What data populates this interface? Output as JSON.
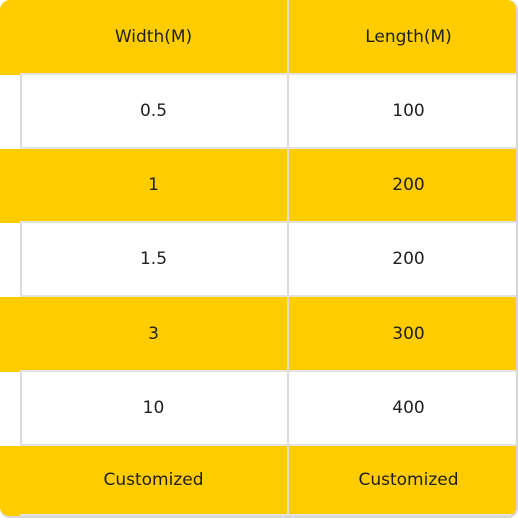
{
  "colors": {
    "accent": "#ffcc00",
    "row_alt": "#ffffff",
    "grid": "#dcdcdc",
    "text": "#1f1f1f"
  },
  "table": {
    "headers": [
      "Width(M)",
      "Length(M)"
    ],
    "rows": [
      [
        "0.5",
        "100"
      ],
      [
        "1",
        "200"
      ],
      [
        "1.5",
        "200"
      ],
      [
        "3",
        "300"
      ],
      [
        "10",
        "400"
      ],
      [
        "Customized",
        "Customized"
      ]
    ]
  }
}
